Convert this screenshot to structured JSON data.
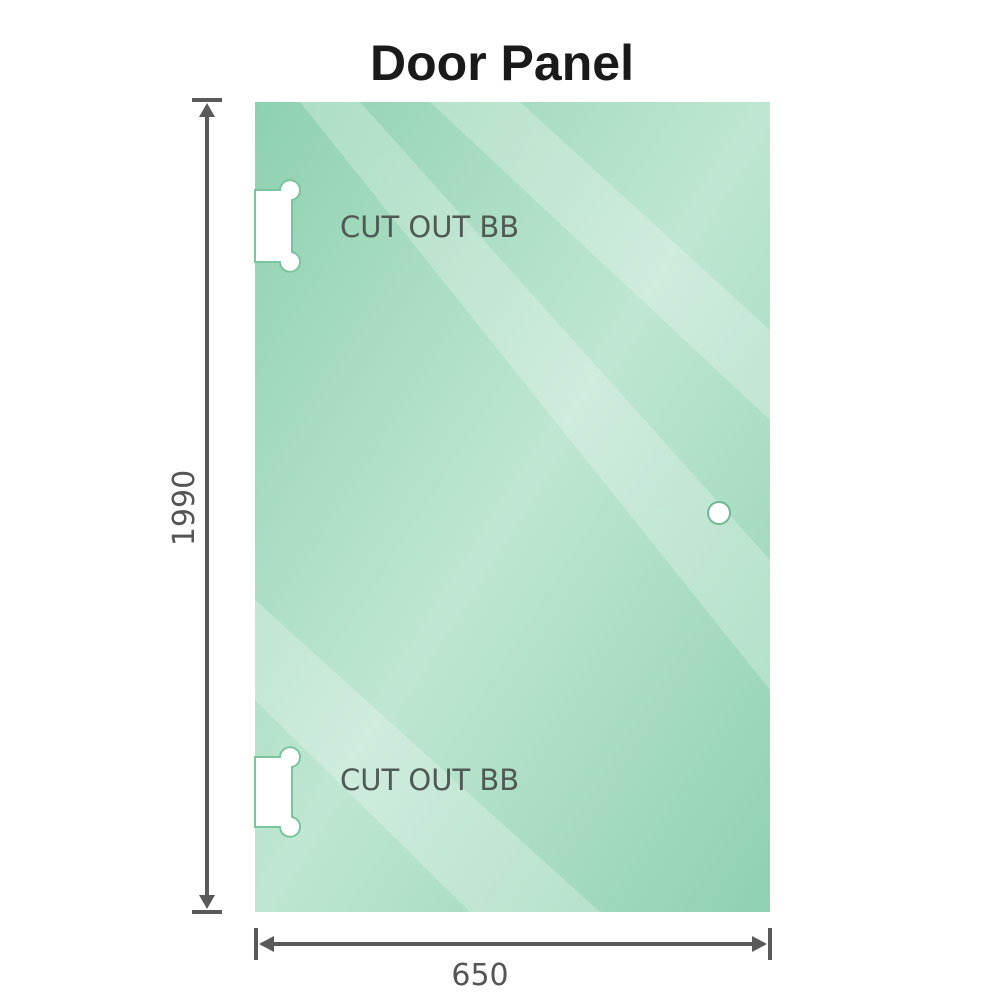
{
  "title": "Door Panel",
  "cutouts": [
    {
      "label": "CUT OUT BB"
    },
    {
      "label": "CUT OUT BB"
    }
  ],
  "dimensions": {
    "height": "1990",
    "width": "650"
  },
  "colors": {
    "glass": "#8fd1b0",
    "glass_light": "#bde6d2",
    "dimension_line": "#5a5a5a"
  }
}
